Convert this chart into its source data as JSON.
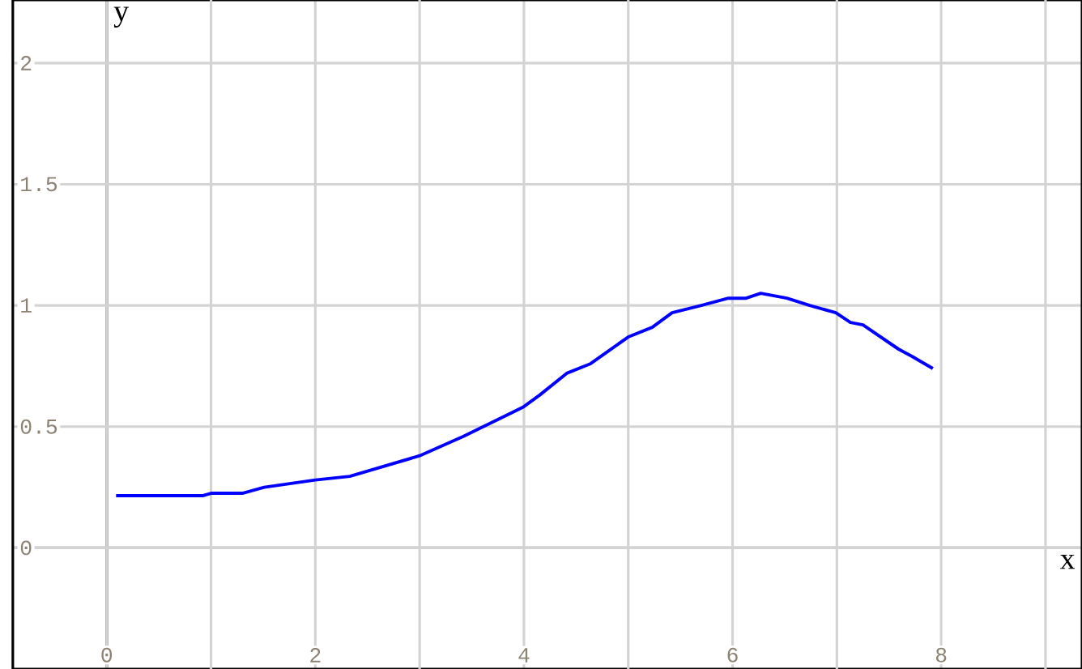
{
  "chart_data": {
    "type": "line",
    "xlabel": "x",
    "ylabel": "y",
    "xlim": [
      -0.9,
      9.35
    ],
    "ylim": [
      -0.5,
      2.26
    ],
    "xticks": [
      0,
      {
        "value": 1,
        "label": null
      },
      2,
      {
        "value": 3,
        "label": null
      },
      4,
      {
        "value": 5,
        "label": null
      },
      6,
      {
        "value": 7,
        "label": null
      },
      8,
      {
        "value": 9,
        "label": null
      }
    ],
    "yticks": [
      0,
      0.5,
      1,
      1.5,
      2
    ],
    "grid": true,
    "marker": "none",
    "line_style": "solid",
    "series": [
      {
        "color": "#0000ff",
        "x": [
          0.09,
          0.92,
          1.0,
          1.3,
          1.51,
          2.0,
          2.33,
          3.0,
          3.42,
          3.99,
          4.15,
          4.41,
          4.64,
          5.0,
          5.23,
          5.42,
          5.7,
          5.96,
          6.13,
          6.27,
          6.52,
          6.74,
          6.99,
          7.13,
          7.25,
          7.59,
          7.72,
          7.92
        ],
        "values": [
          0.215,
          0.215,
          0.225,
          0.225,
          0.25,
          0.28,
          0.295,
          0.38,
          0.46,
          0.58,
          0.63,
          0.72,
          0.76,
          0.87,
          0.91,
          0.97,
          1.0,
          1.03,
          1.03,
          1.05,
          1.03,
          1.0,
          0.97,
          0.93,
          0.92,
          0.82,
          0.79,
          0.74
        ]
      }
    ]
  }
}
